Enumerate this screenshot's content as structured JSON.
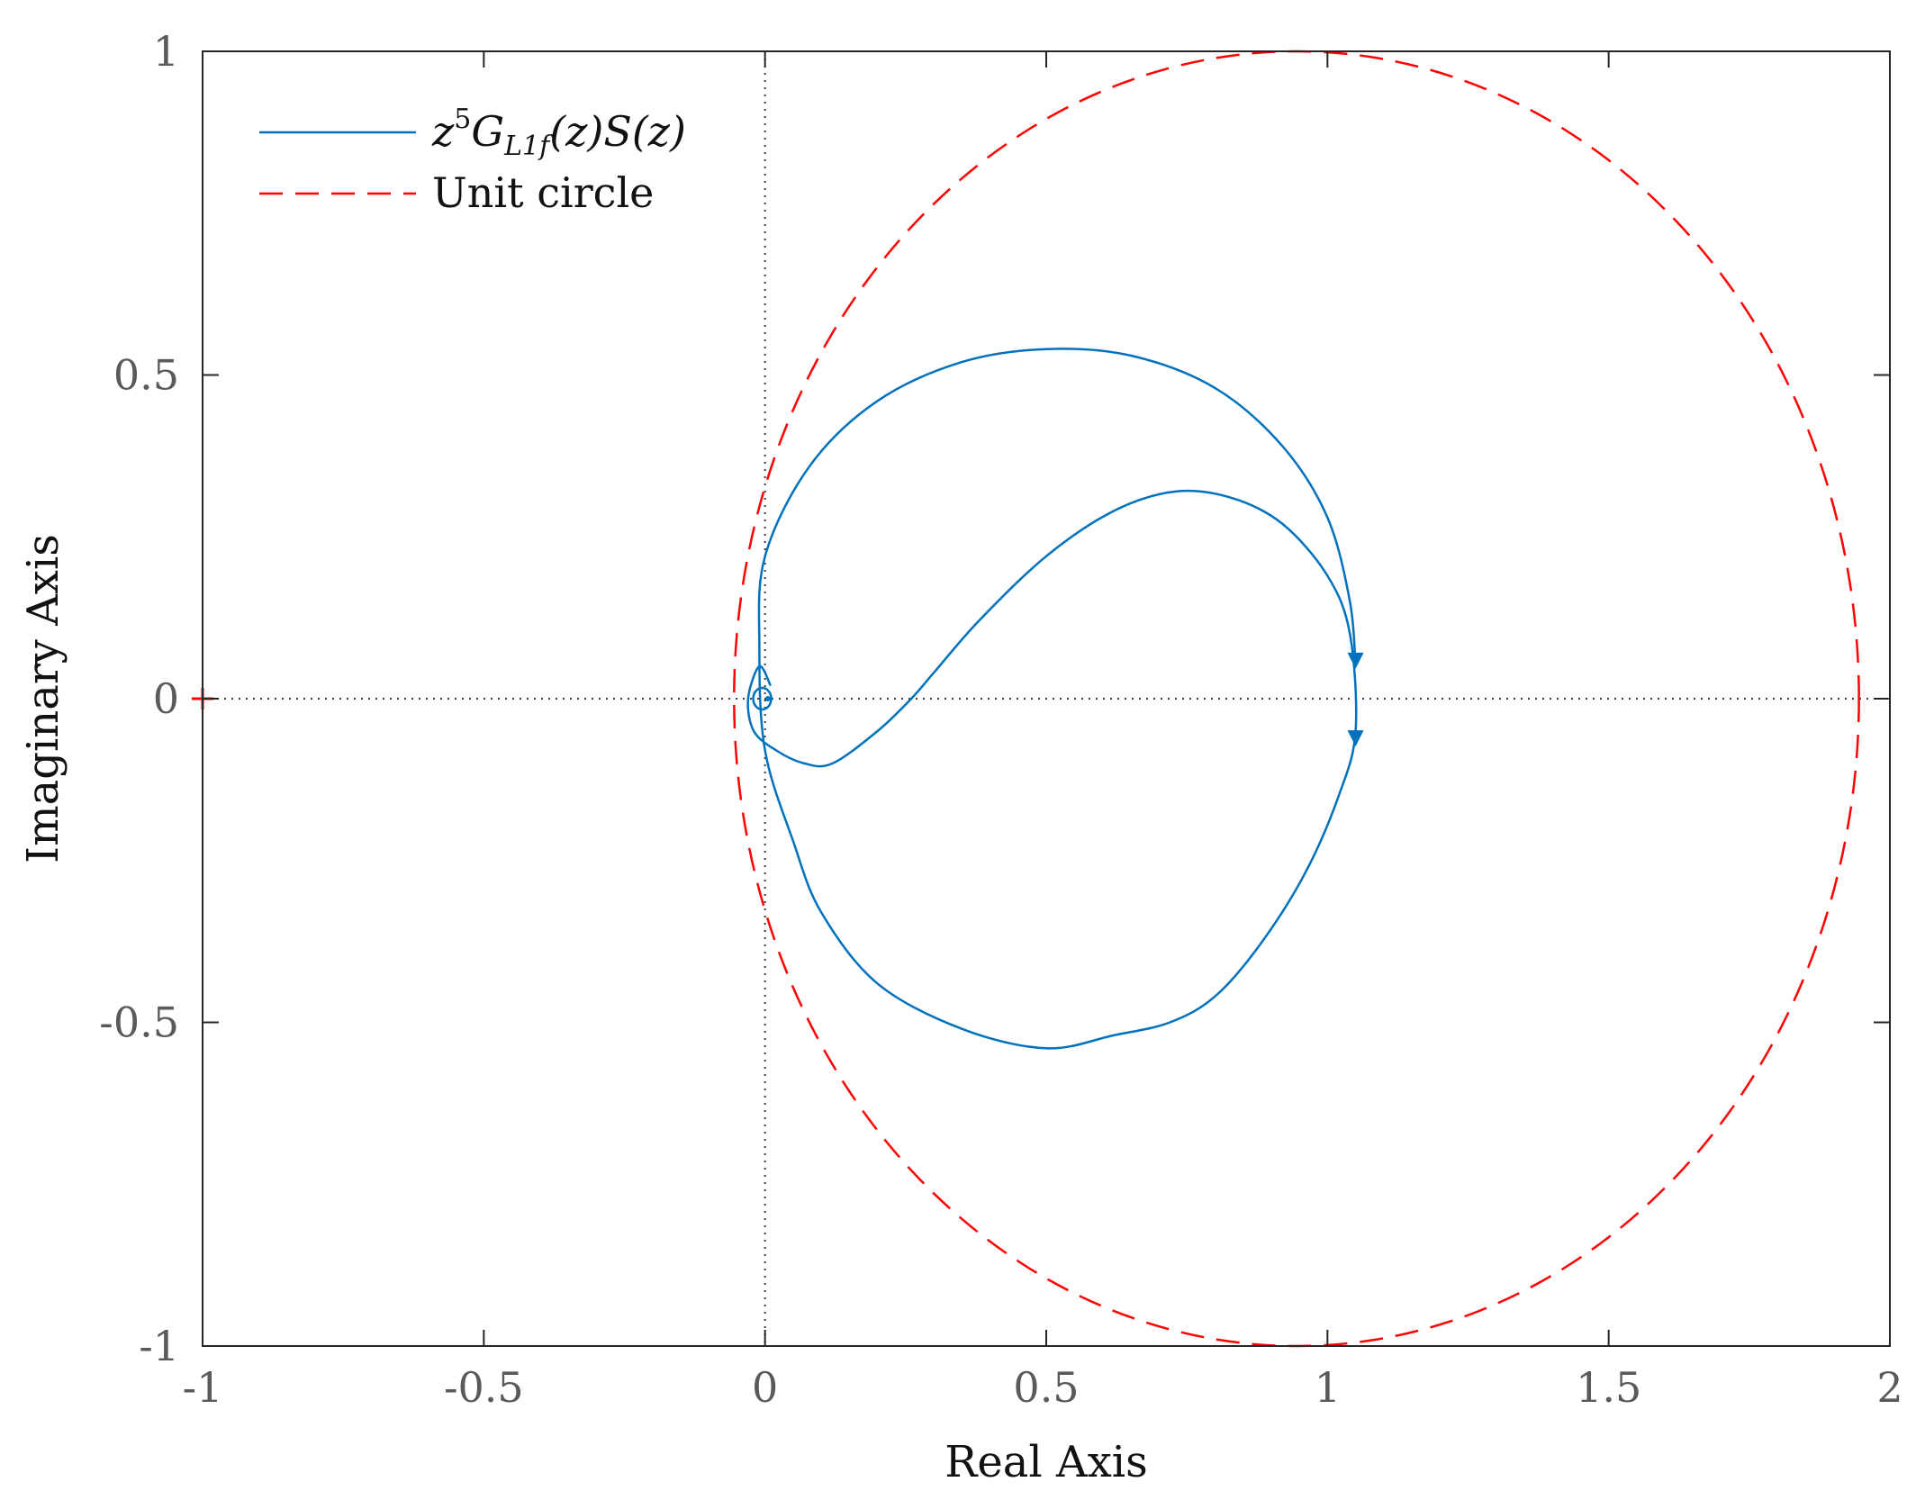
{
  "chart_data": {
    "type": "line",
    "xlabel": "Real Axis",
    "ylabel": "Imaginary Axis",
    "xlim": [
      -1,
      2
    ],
    "ylim": [
      -1,
      1
    ],
    "x_ticks": [
      -1,
      -0.5,
      0,
      0.5,
      1,
      1.5,
      2
    ],
    "x_tick_labels": [
      "-1",
      "-0.5",
      "0",
      "0.5",
      "1",
      "1.5",
      "2"
    ],
    "y_ticks": [
      -1,
      -0.5,
      0,
      0.5,
      1
    ],
    "y_tick_labels": [
      "-1",
      "-0.5",
      "0",
      "0.5",
      "1"
    ],
    "grid": false,
    "zero_lines": "dotted",
    "legend_position": "top-left",
    "critical_point": {
      "x": -1,
      "y": 0,
      "marker": "+",
      "color": "#ff0000"
    },
    "series": [
      {
        "name": "z^5 G_{L1f}(z) S(z)",
        "style": "solid",
        "color": "#0072bd",
        "x": [
          1.05,
          1.04,
          1.0,
          0.92,
          0.8,
          0.65,
          0.5,
          0.35,
          0.2,
          0.08,
          0.0,
          -0.01,
          0.0,
          0.05,
          0.1,
          0.2,
          0.35,
          0.5,
          0.62,
          0.72,
          0.8,
          0.88,
          0.96,
          1.02,
          1.05,
          1.04,
          1.0,
          0.92,
          0.83,
          0.73,
          0.62,
          0.5,
          0.38,
          0.3,
          0.26,
          0.2,
          0.12,
          0.07,
          0.02,
          -0.02,
          -0.03,
          -0.01,
          0.01
        ],
        "y": [
          0.05,
          0.15,
          0.28,
          0.39,
          0.48,
          0.53,
          0.54,
          0.52,
          0.46,
          0.36,
          0.22,
          0.08,
          -0.08,
          -0.22,
          -0.33,
          -0.44,
          -0.51,
          -0.54,
          -0.52,
          -0.5,
          -0.46,
          -0.38,
          -0.27,
          -0.15,
          -0.05,
          0.1,
          0.19,
          0.27,
          0.31,
          0.32,
          0.29,
          0.22,
          0.12,
          0.04,
          0.0,
          -0.05,
          -0.1,
          -0.1,
          -0.08,
          -0.05,
          0.0,
          0.05,
          0.02
        ]
      },
      {
        "name": "Unit circle",
        "style": "dashed",
        "color": "#ff0000",
        "center": [
          0.945,
          0
        ],
        "radius": 1
      }
    ],
    "direction_arrows": [
      {
        "x": 1.05,
        "y": 0.06,
        "direction": "down"
      },
      {
        "x": 1.05,
        "y": -0.06,
        "direction": "down"
      }
    ]
  }
}
